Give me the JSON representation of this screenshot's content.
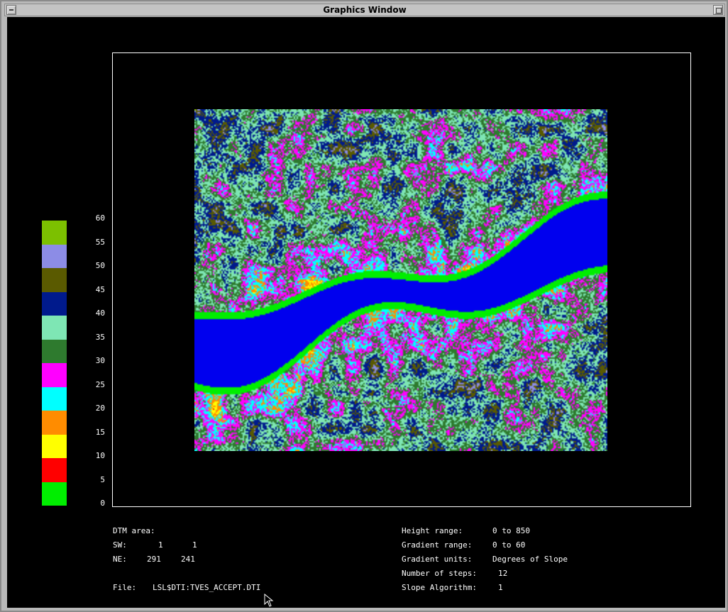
{
  "window": {
    "title": "Graphics Window"
  },
  "legend": {
    "colors": [
      "#00ee00",
      "#ff0000",
      "#ffff00",
      "#ff8c00",
      "#00ffff",
      "#ff00ff",
      "#2e7a2e",
      "#7ee6b4",
      "#001a8c",
      "#5a5a00",
      "#8c8ce6",
      "#7cc000"
    ],
    "labels": [
      "60",
      "55",
      "50",
      "45",
      "40",
      "35",
      "30",
      "25",
      "20",
      "15",
      "10",
      "5",
      "0"
    ]
  },
  "dtm": {
    "area_label": "DTM area:",
    "sw_label": "SW:",
    "sw_x": "1",
    "sw_y": "1",
    "ne_label": "NE:",
    "ne_x": "291",
    "ne_y": "241",
    "file_label": "File:",
    "file_path": "LSL$DTI:TVES_ACCEPT.DTI"
  },
  "params": {
    "height_range_label": "Height range:",
    "height_range": "0 to 850",
    "gradient_range_label": "Gradient range:",
    "gradient_range": "0 to 60",
    "gradient_units_label": "Gradient units:",
    "gradient_units": "Degrees of Slope",
    "steps_label": "Number of steps:",
    "steps": "12",
    "algorithm_label": "Slope Algorithm:",
    "algorithm": "1"
  },
  "map": {
    "water_color": "#0000ee"
  }
}
